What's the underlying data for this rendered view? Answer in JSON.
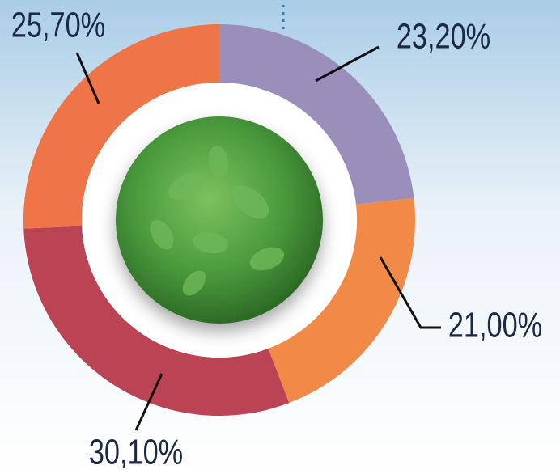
{
  "chart_data": {
    "type": "pie",
    "values": [
      23.2,
      21.0,
      30.1,
      25.7
    ],
    "value_labels": [
      "23,20%",
      "21,00%",
      "30,10%",
      "25,70%"
    ],
    "colors": [
      "#9a8fbb",
      "#f18a47",
      "#ba4453",
      "#ef7549"
    ]
  }
}
